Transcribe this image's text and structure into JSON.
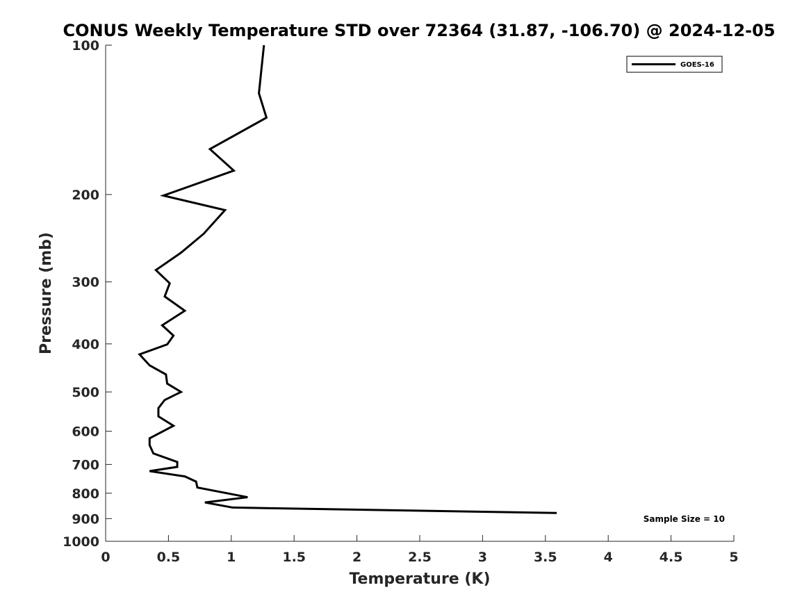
{
  "chart_data": {
    "type": "line",
    "title": "CONUS Weekly Temperature STD over 72364 (31.87, -106.70) @ 2024-12-05",
    "xlabel": "Temperature (K)",
    "ylabel": "Pressure (mb)",
    "xlim": [
      0,
      5
    ],
    "ylim": [
      100,
      1000
    ],
    "y_scale": "log",
    "y_reversed": true,
    "x_ticks": [
      0,
      0.5,
      1,
      1.5,
      2,
      2.5,
      3,
      3.5,
      4,
      4.5,
      5
    ],
    "x_tick_labels": [
      "0",
      "0.5",
      "1",
      "1.5",
      "2",
      "2.5",
      "3",
      "3.5",
      "4",
      "4.5",
      "5"
    ],
    "y_ticks": [
      100,
      200,
      300,
      400,
      500,
      600,
      700,
      800,
      900,
      1000
    ],
    "y_tick_labels": [
      "100",
      "200",
      "300",
      "400",
      "500",
      "600",
      "700",
      "800",
      "900",
      "1000"
    ],
    "grid": false,
    "legend_position": "top-right",
    "line_color": "#000000",
    "series": [
      {
        "name": "GOES-16",
        "x": [
          1.26,
          1.22,
          1.28,
          0.83,
          1.02,
          0.46,
          0.95,
          0.78,
          0.6,
          0.4,
          0.51,
          0.47,
          0.63,
          0.45,
          0.54,
          0.49,
          0.27,
          0.35,
          0.48,
          0.49,
          0.6,
          0.47,
          0.42,
          0.42,
          0.54,
          0.35,
          0.35,
          0.38,
          0.57,
          0.57,
          0.35,
          0.63,
          0.72,
          0.73,
          1.13,
          0.79,
          1.01,
          3.59
        ],
        "y": [
          100,
          125,
          140,
          162,
          179,
          201,
          215,
          240,
          262,
          284,
          302,
          321,
          343,
          367,
          385,
          401,
          420,
          442,
          461,
          481,
          500,
          519,
          539,
          560,
          585,
          620,
          640,
          665,
          692,
          708,
          722,
          740,
          758,
          779,
          815,
          835,
          855,
          877
        ]
      }
    ],
    "annotations": [
      "Sample Size = 10"
    ]
  }
}
